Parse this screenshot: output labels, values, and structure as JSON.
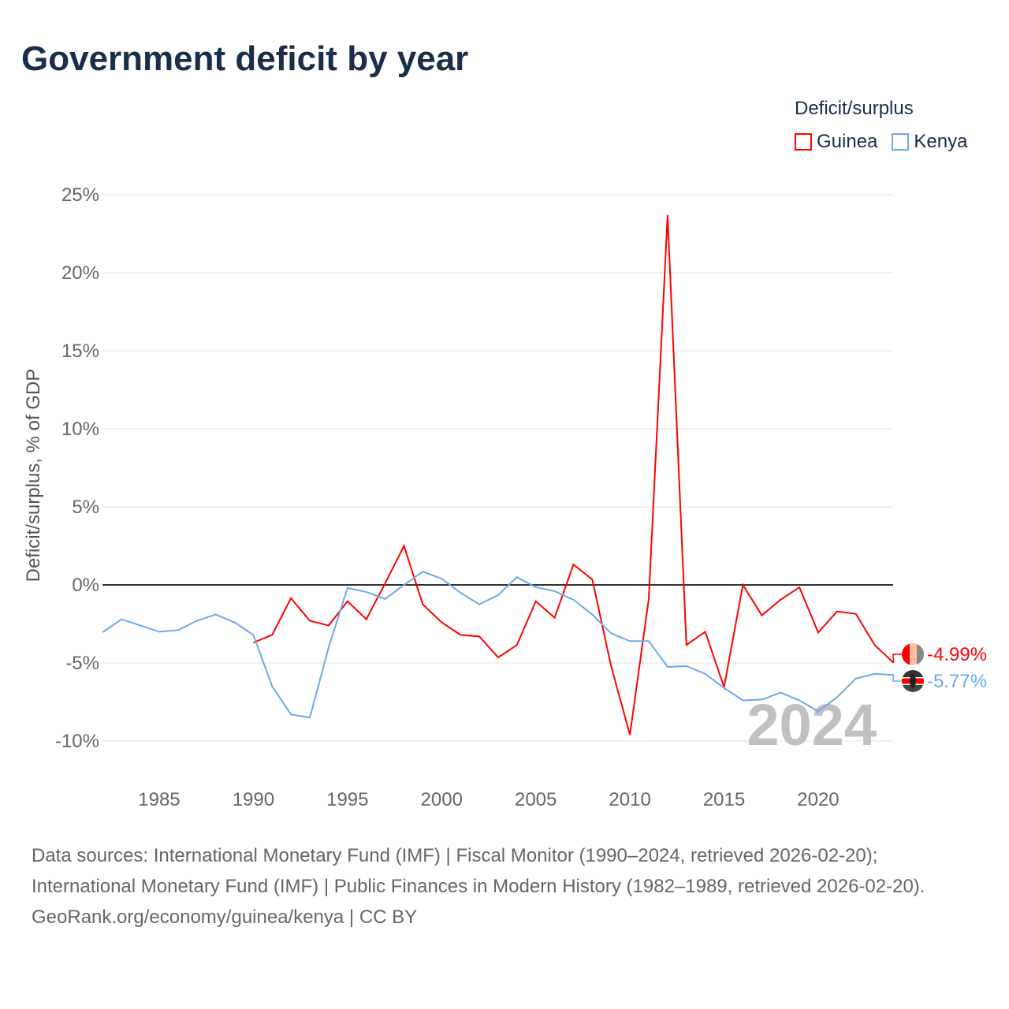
{
  "title": "Government deficit by year",
  "legend": {
    "title": "Deficit/surplus",
    "items": [
      {
        "label": "Guinea",
        "color": "#ff0000"
      },
      {
        "label": "Kenya",
        "color": "#6aaae8"
      }
    ]
  },
  "watermark_year": "2024",
  "end_labels": {
    "guinea": "-4.99%",
    "kenya": "-5.77%"
  },
  "footer": {
    "sources": "Data sources: International Monetary Fund (IMF) | Fiscal Monitor (1990–2024, retrieved 2026-02-20); International Monetary Fund (IMF) | Public Finances in Modern History (1982–1989, retrieved 2026-02-20).",
    "credit": "GeoRank.org/economy/guinea/kenya | CC BY"
  },
  "chart_data": {
    "type": "line",
    "title": "Government deficit by year",
    "xlabel": "",
    "ylabel": "Deficit/surplus, % of GDP",
    "xlim": [
      1982,
      2024
    ],
    "ylim": [
      -12,
      25
    ],
    "yticks": [
      -10,
      -5,
      0,
      5,
      10,
      15,
      20,
      25
    ],
    "ytick_labels": [
      "-10%",
      "-5%",
      "0%",
      "5%",
      "10%",
      "15%",
      "20%",
      "25%"
    ],
    "xticks": [
      1985,
      1990,
      1995,
      2000,
      2005,
      2010,
      2015,
      2020
    ],
    "xtick_labels": [
      "1985",
      "1990",
      "1995",
      "2000",
      "2005",
      "2010",
      "2015",
      "2020"
    ],
    "grid": true,
    "legend_position": "top-right",
    "series": [
      {
        "name": "Guinea",
        "color": "#ff0000",
        "start": 1990,
        "values": [
          -3.7,
          -3.2,
          -0.85,
          -2.3,
          -2.6,
          -1.05,
          -2.2,
          0.1,
          2.5,
          -1.25,
          -2.4,
          -3.2,
          -3.3,
          -4.65,
          -3.85,
          -1.05,
          -2.1,
          1.3,
          0.35,
          -5.2,
          -9.6,
          -0.9,
          23.7,
          -3.85,
          -3.0,
          -6.55,
          0.0,
          -1.95,
          -0.95,
          -0.15,
          -3.05,
          -1.7,
          -1.85,
          -3.85,
          -4.99
        ]
      },
      {
        "name": "Kenya",
        "color": "#6aaae8",
        "start": 1982,
        "values": [
          -3.03,
          -2.2,
          -2.6,
          -3.0,
          -2.9,
          -2.3,
          -1.9,
          -2.4,
          -3.2,
          -6.5,
          -8.3,
          -8.5,
          -4.0,
          -0.2,
          -0.45,
          -0.9,
          0.0,
          0.85,
          0.4,
          -0.5,
          -1.25,
          -0.65,
          0.5,
          -0.15,
          -0.4,
          -0.95,
          -1.9,
          -3.1,
          -3.6,
          -3.6,
          -5.25,
          -5.2,
          -5.7,
          -6.6,
          -7.4,
          -7.35,
          -6.9,
          -7.4,
          -8.1,
          -7.2,
          -6.0,
          -5.7,
          -5.77
        ]
      }
    ]
  }
}
